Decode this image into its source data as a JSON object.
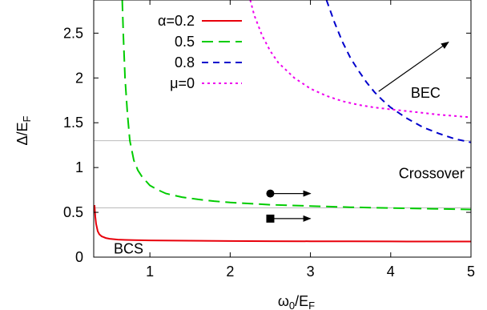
{
  "chart_data": {
    "type": "line",
    "title": "",
    "xlabel": {
      "main": "ω",
      "sub0": "0",
      "mid": "/E",
      "sub1": "F"
    },
    "ylabel": {
      "main": "Δ/E",
      "sub": "F"
    },
    "xlim": [
      0.3,
      5.0
    ],
    "ylim": [
      0.0,
      2.87
    ],
    "xticks": [
      1,
      2,
      3,
      4,
      5
    ],
    "yticks": [
      0,
      0.5,
      1,
      1.5,
      2,
      2.5
    ],
    "ytick_labels": [
      "0",
      "0.5",
      "1",
      "1.5",
      "2",
      "2.5"
    ],
    "grid": false,
    "legend_position": "top-left",
    "series": [
      {
        "name": "α=0.2",
        "color": "#e8000b",
        "dash": "solid",
        "x": [
          0.31,
          0.32,
          0.33,
          0.35,
          0.37,
          0.4,
          0.45,
          0.5,
          0.6,
          0.7,
          0.8,
          1.0,
          1.5,
          2.0,
          2.5,
          3.0,
          3.5,
          4.0,
          4.5,
          5.0
        ],
        "y": [
          0.58,
          0.45,
          0.37,
          0.29,
          0.255,
          0.232,
          0.214,
          0.205,
          0.196,
          0.192,
          0.19,
          0.187,
          0.183,
          0.18,
          0.178,
          0.177,
          0.176,
          0.175,
          0.174,
          0.174
        ]
      },
      {
        "name": "0.5",
        "color": "#00cc00",
        "dash": "long-dash",
        "x": [
          0.655,
          0.67,
          0.69,
          0.72,
          0.75,
          0.8,
          0.85,
          0.9,
          1.0,
          1.1,
          1.2,
          1.4,
          1.6,
          1.8,
          2.0,
          2.5,
          3.0,
          3.5,
          4.0,
          4.5,
          5.0
        ],
        "y": [
          2.87,
          2.45,
          2.0,
          1.6,
          1.3,
          1.08,
          0.97,
          0.9,
          0.8,
          0.75,
          0.71,
          0.67,
          0.645,
          0.625,
          0.61,
          0.585,
          0.57,
          0.557,
          0.548,
          0.54,
          0.532
        ]
      },
      {
        "name": "0.8",
        "color": "#0000cc",
        "dash": "dash",
        "x": [
          3.2,
          3.3,
          3.4,
          3.5,
          3.6,
          3.7,
          3.8,
          3.9,
          4.0,
          4.2,
          4.4,
          4.6,
          4.8,
          5.0
        ],
        "y": [
          2.87,
          2.62,
          2.4,
          2.22,
          2.08,
          1.95,
          1.84,
          1.75,
          1.67,
          1.55,
          1.45,
          1.38,
          1.32,
          1.28
        ]
      },
      {
        "name": "μ=0",
        "color": "#ee00ee",
        "dash": "dot",
        "x": [
          2.25,
          2.3,
          2.4,
          2.5,
          2.6,
          2.8,
          3.0,
          3.2,
          3.4,
          3.6,
          3.8,
          4.0,
          4.2,
          4.4,
          4.6,
          4.8,
          5.0
        ],
        "y": [
          2.87,
          2.7,
          2.47,
          2.3,
          2.17,
          2.0,
          1.88,
          1.8,
          1.74,
          1.7,
          1.67,
          1.65,
          1.63,
          1.61,
          1.59,
          1.575,
          1.56
        ]
      }
    ],
    "reference_lines": [
      {
        "y": 1.3,
        "color": "#bbbbbb"
      },
      {
        "y": 0.55,
        "color": "#bbbbbb"
      }
    ],
    "annotations": [
      {
        "text": "BEC",
        "x": 4.25,
        "y": 1.78
      },
      {
        "text": "Crossover",
        "x": 4.1,
        "y": 0.88
      },
      {
        "text": "BCS",
        "x": 0.55,
        "y": 0.04
      }
    ],
    "arrows": [
      {
        "from": [
          3.85,
          1.85
        ],
        "to": [
          4.72,
          2.4
        ]
      },
      {
        "from": [
          2.5,
          0.71
        ],
        "to": [
          3.0,
          0.71
        ]
      },
      {
        "from": [
          2.5,
          0.43
        ],
        "to": [
          3.0,
          0.43
        ]
      }
    ],
    "markers": [
      {
        "shape": "circle",
        "x": 2.5,
        "y": 0.71
      },
      {
        "shape": "square",
        "x": 2.5,
        "y": 0.43
      }
    ]
  }
}
